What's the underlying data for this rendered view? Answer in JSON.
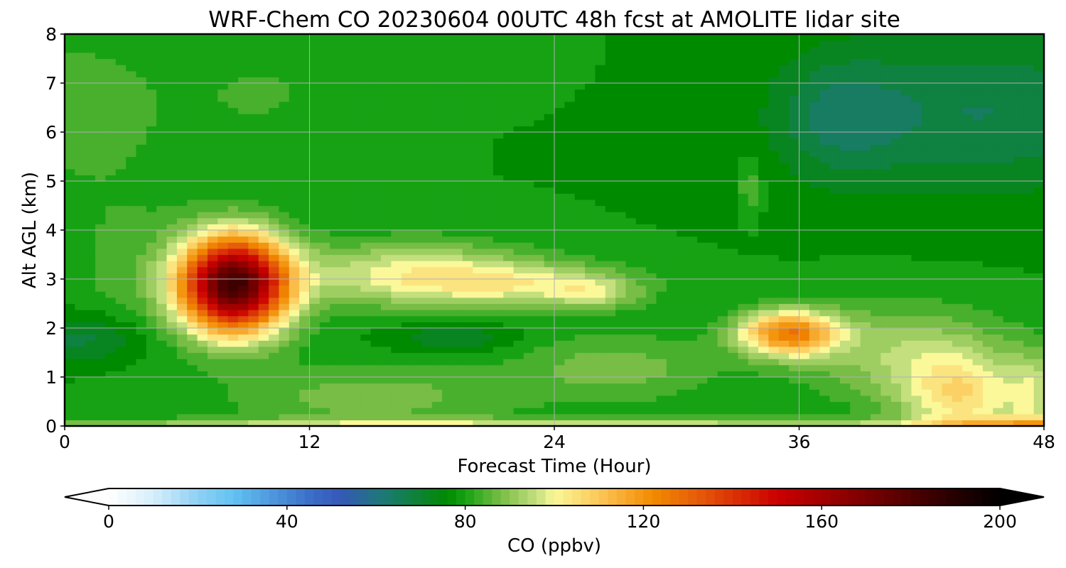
{
  "chart_data": {
    "type": "heatmap",
    "title": "WRF-Chem CO  20230604 00UTC 48h fcst at AMOLITE lidar site",
    "xlabel": "Forecast Time (Hour)",
    "ylabel": "Alt AGL (km)",
    "xlim": [
      0,
      48
    ],
    "ylim": [
      0,
      8
    ],
    "x_ticks": [
      0,
      12,
      24,
      36,
      48
    ],
    "y_ticks": [
      0,
      1,
      2,
      3,
      4,
      5,
      6,
      7,
      8
    ],
    "grid": true,
    "colorbar": {
      "label": "CO  (ppbv)",
      "orientation": "horizontal",
      "placement": "bottom",
      "range": [
        0,
        200
      ],
      "ticks": [
        0,
        40,
        80,
        120,
        160,
        200
      ],
      "extend": "both",
      "stops": [
        {
          "v": 0,
          "color": "#ffffff"
        },
        {
          "v": 10,
          "color": "#d6eefb"
        },
        {
          "v": 20,
          "color": "#8fd0f4"
        },
        {
          "v": 28,
          "color": "#62c2f2"
        },
        {
          "v": 45,
          "color": "#3b6fc8"
        },
        {
          "v": 52,
          "color": "#3558b8"
        },
        {
          "v": 62,
          "color": "#1b7a72"
        },
        {
          "v": 76,
          "color": "#008a00"
        },
        {
          "v": 80,
          "color": "#17a214"
        },
        {
          "v": 88,
          "color": "#78bd45"
        },
        {
          "v": 96,
          "color": "#c4df7e"
        },
        {
          "v": 100,
          "color": "#fbf89a"
        },
        {
          "v": 112,
          "color": "#fbbd4a"
        },
        {
          "v": 122,
          "color": "#f28b00"
        },
        {
          "v": 132,
          "color": "#e65c0a"
        },
        {
          "v": 150,
          "color": "#cc0000"
        },
        {
          "v": 170,
          "color": "#7a0000"
        },
        {
          "v": 188,
          "color": "#2d0000"
        },
        {
          "v": 200,
          "color": "#000000"
        }
      ]
    },
    "background_ppbv": 78,
    "features": [
      {
        "t": 0,
        "z": 6.5,
        "st": 6,
        "sz": 1.8,
        "ppbv": 6
      },
      {
        "t": 10,
        "z": 6.8,
        "st": 4,
        "sz": 1.2,
        "ppbv": 4
      },
      {
        "t": 20,
        "z": 7.6,
        "st": 3,
        "sz": 0.6,
        "ppbv": 3
      },
      {
        "t": 15,
        "z": 0.6,
        "st": 7,
        "sz": 0.7,
        "ppbv": 10
      },
      {
        "t": 27,
        "z": 1.2,
        "st": 5,
        "sz": 0.7,
        "ppbv": 10
      },
      {
        "t": 3,
        "z": 3.2,
        "st": 3,
        "sz": 1.6,
        "ppbv": 5
      },
      {
        "t": 1,
        "z": 1.8,
        "st": 3,
        "sz": 0.5,
        "ppbv": -10
      },
      {
        "t": 19,
        "z": 1.8,
        "st": 3,
        "sz": 0.3,
        "ppbv": -8
      },
      {
        "t": 45,
        "z": 6.4,
        "st": 8,
        "sz": 1.6,
        "ppbv": -12
      },
      {
        "t": 38,
        "z": 6.3,
        "st": 3,
        "sz": 1.2,
        "ppbv": -10
      },
      {
        "t": 33.6,
        "z": 4.9,
        "st": 0.5,
        "sz": 0.5,
        "ppbv": 8
      },
      {
        "t": 8.3,
        "z": 2.9,
        "st": 2.6,
        "sz": 0.95,
        "ppbv": 105
      },
      {
        "t": 17,
        "z": 3.1,
        "st": 5.5,
        "sz": 0.65,
        "ppbv": 22
      },
      {
        "t": 23,
        "z": 2.9,
        "st": 5,
        "sz": 0.45,
        "ppbv": 17
      },
      {
        "t": 26,
        "z": 2.7,
        "st": 2,
        "sz": 0.3,
        "ppbv": 12
      },
      {
        "t": 35.5,
        "z": 1.9,
        "st": 2.4,
        "sz": 0.45,
        "ppbv": 45
      },
      {
        "t": 44,
        "z": 0.6,
        "st": 3,
        "sz": 0.9,
        "ppbv": 24
      },
      {
        "t": 47.5,
        "z": 0.6,
        "st": 1.2,
        "sz": 0.9,
        "ppbv": 14
      },
      {
        "t": 41,
        "z": 1.5,
        "st": 5,
        "sz": 1.0,
        "ppbv": 14
      },
      {
        "t": 24,
        "z": 0.0,
        "st": 30,
        "sz": 0.15,
        "ppbv": 20
      },
      {
        "t": 48,
        "z": 0.0,
        "st": 4,
        "sz": 0.2,
        "ppbv": 20
      }
    ]
  }
}
